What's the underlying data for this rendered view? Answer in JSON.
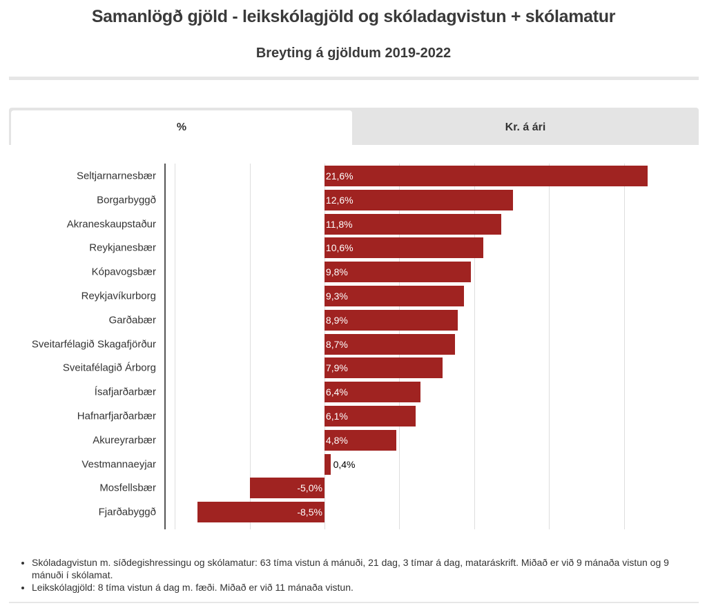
{
  "header": {
    "title": "Samanlögð gjöld - leikskólagjöld og skóladagvistun + skólamatur",
    "subtitle": "Breyting á gjöldum 2019-2022"
  },
  "tabs": [
    {
      "label": "%",
      "active": true
    },
    {
      "label": "Kr. á ári",
      "active": false
    }
  ],
  "chart_data": {
    "type": "bar",
    "orientation": "horizontal",
    "title": "Breyting á gjöldum 2019-2022",
    "xlabel": "",
    "ylabel": "",
    "xlim": [
      -10.65,
      25
    ],
    "grid": true,
    "gridlines": [
      -10,
      -5,
      0,
      5,
      10,
      15,
      20
    ],
    "bar_color": "#a02321",
    "categories": [
      "Seltjarnarnesbær",
      "Borgarbyggð",
      "Akraneskaupstaður",
      "Reykjanesbær",
      "Kópavogsbær",
      "Reykjavíkurborg",
      "Garðabær",
      "Sveitarfélagið Skagafjörður",
      "Sveitafélagið Árborg",
      "Ísafjarðarbær",
      "Hafnarfjarðarbær",
      "Akureyrarbær",
      "Vestmannaeyjar",
      "Mosfellsbær",
      "Fjarðabyggð"
    ],
    "values": [
      21.6,
      12.6,
      11.8,
      10.6,
      9.8,
      9.3,
      8.9,
      8.7,
      7.9,
      6.4,
      6.1,
      4.8,
      0.4,
      -5.0,
      -8.5
    ],
    "labels": [
      "21,6%",
      "12,6%",
      "11,8%",
      "10,6%",
      "9,8%",
      "9,3%",
      "8,9%",
      "8,7%",
      "7,9%",
      "6,4%",
      "6,1%",
      "4,8%",
      "0,4%",
      "-5,0%",
      "-8,5%"
    ]
  },
  "notes": [
    "Skóladagvistun m. síðdegishressingu og skólamatur: 63 tíma vistun á mánuði, 21 dag, 3 tímar á dag, mataráskrift. Miðað er við 9 mánaða vistun og 9 mánuði í skólamat.",
    "Leikskólagjöld: 8 tíma vistun á dag m. fæði. Miðað er við 11 mánaða vistun."
  ]
}
